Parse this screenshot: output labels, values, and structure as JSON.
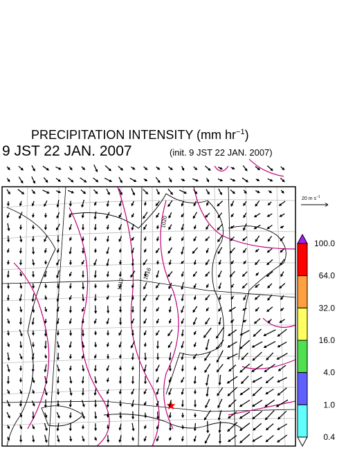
{
  "header": {
    "title": "PRECIPITATION INTENSITY (mm hr",
    "title_exponent": "−1",
    "title_close": ")",
    "valid_time": "9 JST 22 JAN. 2007",
    "init_time": "(init. 9 JST 22 JAN. 2007)"
  },
  "wind_scale": {
    "label": "20 m s",
    "exponent": "−1"
  },
  "contour_labels": [
    "1020",
    "1016",
    "1012"
  ],
  "colorbar": {
    "labels": [
      "100.0",
      "64.0",
      "32.0",
      "16.0",
      "4.0",
      "1.0",
      "0.4"
    ],
    "colors": [
      "#a020f0",
      "#ff0000",
      "#ffa040",
      "#ffff60",
      "#50e050",
      "#6060ff",
      "#60ffff",
      "#ffffff"
    ]
  }
}
